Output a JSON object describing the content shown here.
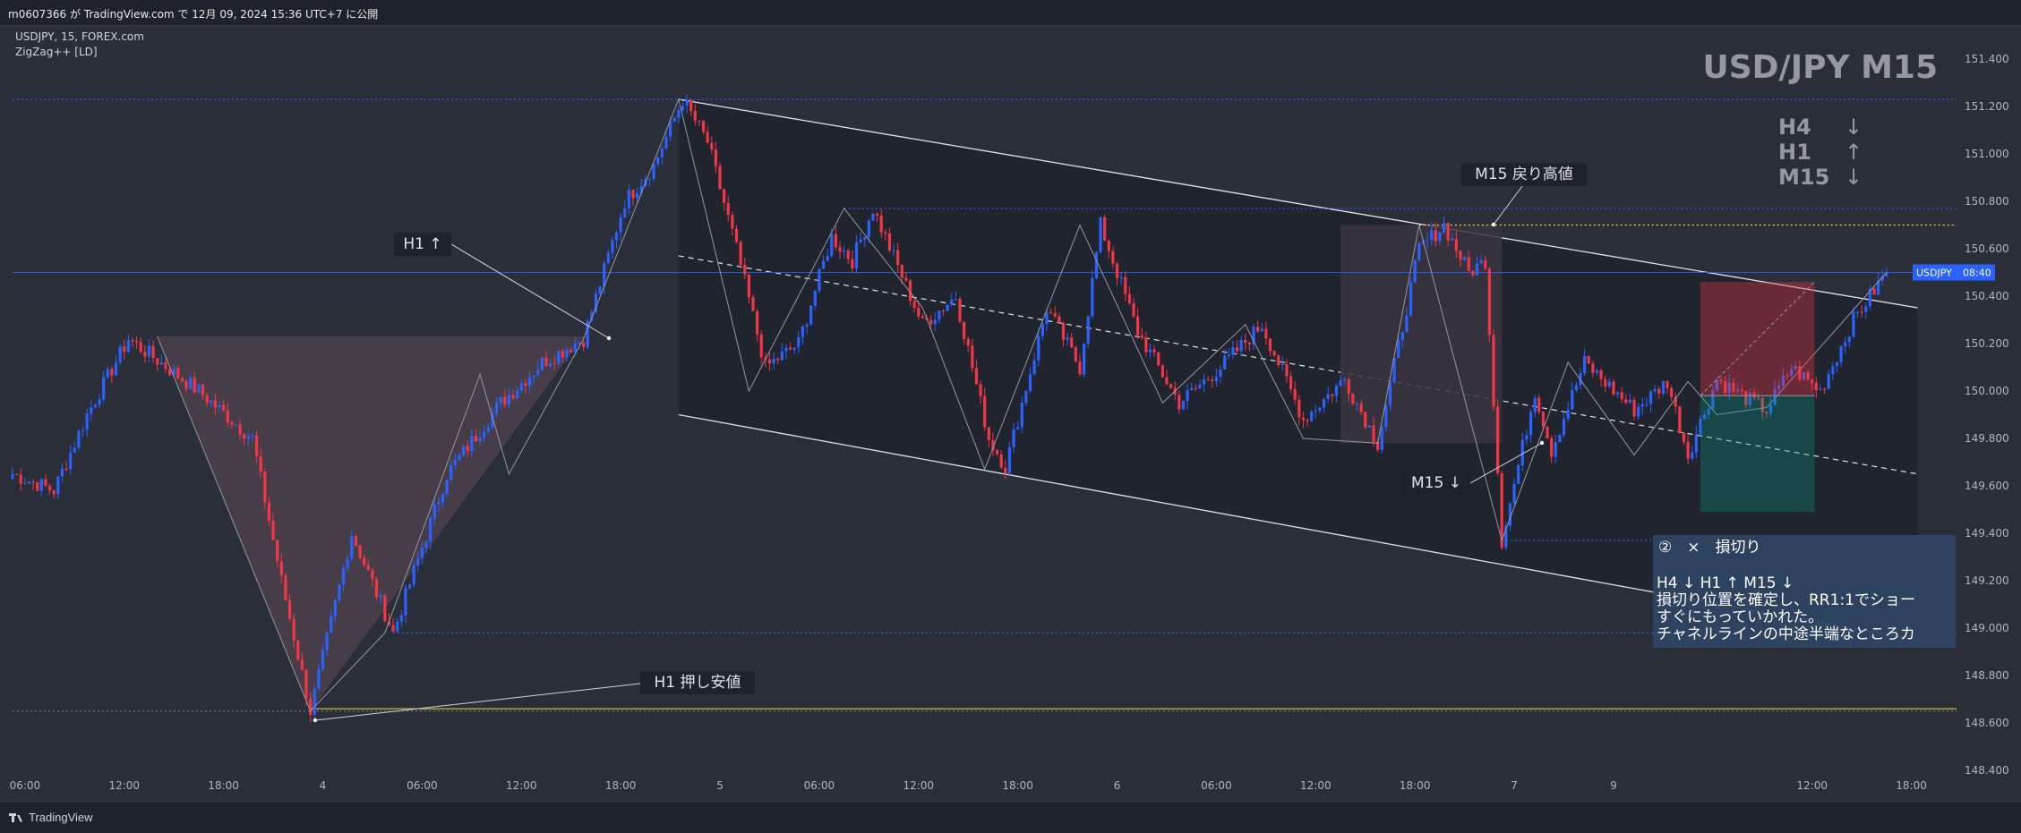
{
  "header": {
    "publish_line": "m0607366 が TradingView.com で 12月 09, 2024 15:36 UTC+7 に公開"
  },
  "legend": {
    "symbol_line": "USDJPY, 15, FOREX.com",
    "indicator_line": "ZigZag++ [LD]"
  },
  "watermark": "USD/JPY M15",
  "trend_box": {
    "lines": [
      {
        "tf": "H4",
        "arrow": "↓"
      },
      {
        "tf": "H1",
        "arrow": "↑"
      },
      {
        "tf": "M15",
        "arrow": "↓"
      }
    ]
  },
  "price_tag": {
    "symbol": "USDJPY",
    "time": "08:40",
    "color": "#2962ff"
  },
  "annotations": {
    "h1_up": "H1 ↑",
    "m15_high": "M15 戻り高値",
    "m15_down": "M15 ↓",
    "h1_low": "H1 押し安値"
  },
  "note_box": {
    "title": "②　×　損切り",
    "lines": [
      "H4 ↓ H1 ↑ M15 ↓",
      "損切り位置を確定し、RR1:1でショー",
      "すぐにもっていかれた。",
      "チャネルラインの中途半端なところカ"
    ],
    "bg": "#2d4462"
  },
  "footer": {
    "brand": "TradingView"
  },
  "colors": {
    "background": "#2a2e39",
    "up": "#2962ff",
    "down": "#f23645",
    "zigzag": "#9598a1",
    "hline_blue": "#2962ff",
    "hline_yellow": "#f5e23b",
    "channel_fill": "#1e222d"
  },
  "chart_data": {
    "type": "candlestick",
    "symbol": "USDJPY",
    "timeframe": "15",
    "ylim": [
      148.4,
      151.5
    ],
    "y_ticks": [
      151.4,
      151.2,
      151.0,
      150.8,
      150.6,
      150.4,
      150.2,
      150.0,
      149.8,
      149.6,
      149.4,
      149.2,
      149.0,
      148.8,
      148.6,
      148.4
    ],
    "y_tick_labels": [
      "151.400",
      "151.200",
      "151.000",
      "150.800",
      "150.600",
      "150.400",
      "150.200",
      "150.000",
      "149.800",
      "149.600",
      "149.400",
      "149.200",
      "149.000",
      "148.800",
      "148.600",
      "148.400"
    ],
    "x_ticks": [
      {
        "label": "06:00",
        "bar": 3
      },
      {
        "label": "12:00",
        "bar": 27
      },
      {
        "label": "18:00",
        "bar": 51
      },
      {
        "label": "4",
        "bar": 75
      },
      {
        "label": "06:00",
        "bar": 99
      },
      {
        "label": "12:00",
        "bar": 123
      },
      {
        "label": "18:00",
        "bar": 147
      },
      {
        "label": "5",
        "bar": 171
      },
      {
        "label": "06:00",
        "bar": 195
      },
      {
        "label": "12:00",
        "bar": 219
      },
      {
        "label": "18:00",
        "bar": 243
      },
      {
        "label": "6",
        "bar": 267
      },
      {
        "label": "06:00",
        "bar": 291
      },
      {
        "label": "12:00",
        "bar": 315
      },
      {
        "label": "18:00",
        "bar": 339
      },
      {
        "label": "7",
        "bar": 363
      },
      {
        "label": "9",
        "bar": 387
      },
      {
        "label": "12:00",
        "bar": 435
      },
      {
        "label": "18:00",
        "bar": 459
      }
    ],
    "bars_total": 454,
    "last_price": 150.5,
    "anchors": [
      [
        0,
        149.65
      ],
      [
        10,
        149.58
      ],
      [
        18,
        149.9
      ],
      [
        28,
        150.22
      ],
      [
        35,
        150.13
      ],
      [
        45,
        150.0
      ],
      [
        58,
        149.8
      ],
      [
        65,
        149.2
      ],
      [
        72,
        148.65
      ],
      [
        82,
        149.4
      ],
      [
        92,
        148.98
      ],
      [
        105,
        149.65
      ],
      [
        118,
        149.95
      ],
      [
        128,
        150.12
      ],
      [
        138,
        150.22
      ],
      [
        148,
        150.8
      ],
      [
        155,
        150.95
      ],
      [
        162,
        151.23
      ],
      [
        168,
        151.05
      ],
      [
        175,
        150.6
      ],
      [
        182,
        150.1
      ],
      [
        190,
        150.2
      ],
      [
        198,
        150.65
      ],
      [
        203,
        150.55
      ],
      [
        208,
        150.77
      ],
      [
        220,
        150.28
      ],
      [
        228,
        150.4
      ],
      [
        236,
        149.8
      ],
      [
        240,
        149.68
      ],
      [
        250,
        150.35
      ],
      [
        258,
        150.1
      ],
      [
        263,
        150.7
      ],
      [
        272,
        150.25
      ],
      [
        282,
        149.95
      ],
      [
        292,
        150.1
      ],
      [
        302,
        150.28
      ],
      [
        312,
        149.88
      ],
      [
        322,
        150.05
      ],
      [
        330,
        149.78
      ],
      [
        340,
        150.6
      ],
      [
        346,
        150.7
      ],
      [
        352,
        150.5
      ],
      [
        356,
        150.55
      ],
      [
        360,
        149.37
      ],
      [
        368,
        150.0
      ],
      [
        372,
        149.75
      ],
      [
        380,
        150.12
      ],
      [
        392,
        149.92
      ],
      [
        400,
        150.04
      ],
      [
        405,
        149.73
      ],
      [
        412,
        150.05
      ],
      [
        418,
        149.98
      ],
      [
        424,
        149.92
      ],
      [
        430,
        150.1
      ],
      [
        437,
        150.0
      ],
      [
        445,
        150.3
      ],
      [
        453,
        150.5
      ]
    ],
    "zigzag": [
      [
        35,
        150.23
      ],
      [
        72,
        148.65
      ],
      [
        90,
        148.98
      ],
      [
        113,
        150.07
      ],
      [
        120,
        149.65
      ],
      [
        138,
        150.22
      ],
      [
        161,
        151.23
      ],
      [
        178,
        150.0
      ],
      [
        201,
        150.77
      ],
      [
        220,
        150.35
      ],
      [
        235,
        149.67
      ],
      [
        258,
        150.7
      ],
      [
        278,
        149.95
      ],
      [
        298,
        150.28
      ],
      [
        312,
        149.8
      ],
      [
        330,
        149.78
      ],
      [
        340,
        150.7
      ],
      [
        360,
        149.37
      ],
      [
        376,
        150.12
      ],
      [
        392,
        149.73
      ],
      [
        405,
        150.04
      ],
      [
        412,
        149.9
      ],
      [
        424,
        149.93
      ],
      [
        453,
        150.5
      ]
    ],
    "horizontal_lines": [
      {
        "price": 151.23,
        "color": "#2962ff",
        "style": "dotted",
        "from_bar": 0
      },
      {
        "price": 150.77,
        "color": "#2962ff",
        "style": "dotted",
        "from_bar": 201
      },
      {
        "price": 150.7,
        "color": "#f5e23b",
        "style": "dotted",
        "from_bar": 340
      },
      {
        "price": 150.5,
        "color": "#2962ff",
        "style": "solid",
        "from_bar": 0
      },
      {
        "price": 149.37,
        "color": "#2962ff",
        "style": "dotted",
        "from_bar": 360
      },
      {
        "price": 148.98,
        "color": "#2962ff",
        "style": "dotted",
        "from_bar": 92
      },
      {
        "price": 148.66,
        "color": "#f5e23b",
        "style": "solid",
        "from_bar": 72
      },
      {
        "price": 148.65,
        "color": "#787b86",
        "style": "dotted",
        "from_bar": 0
      }
    ],
    "channel": {
      "start_bar": 161,
      "end_bar": 454,
      "upper": [
        151.23,
        150.37
      ],
      "lower": [
        149.9,
        148.97
      ],
      "mid": [
        150.57,
        149.67
      ]
    },
    "position": {
      "start_bar": 408,
      "end_bar": 433,
      "entry": 149.98,
      "stop": 150.46,
      "target": 149.49
    }
  }
}
